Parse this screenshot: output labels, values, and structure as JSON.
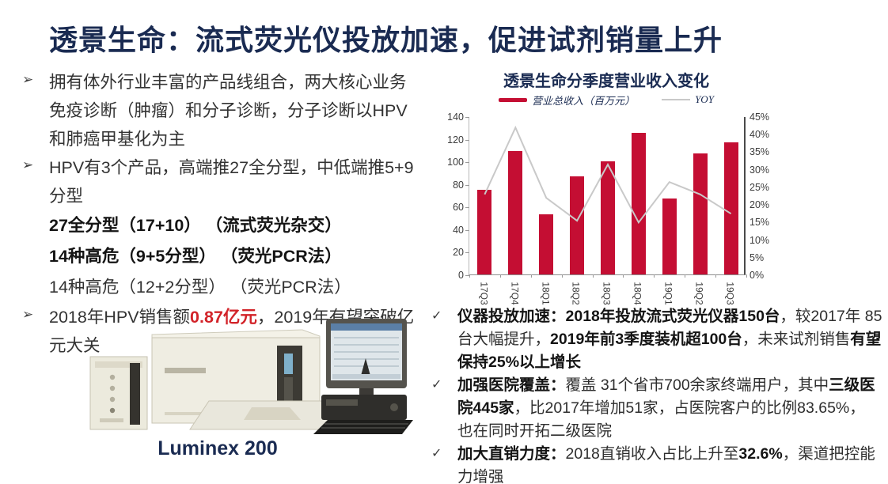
{
  "slide_title": "透景生命：流式荧光仪投放加速，促进试剂销量上升",
  "left_panel": {
    "bullets": [
      {
        "marker": "➢",
        "sub": false,
        "segments": [
          {
            "text": "拥有体外行业丰富的产品线组合，两大核心业务免疫诊断（肿瘤）和分子诊断，分子诊断以HPV和肺癌甲基化为主"
          }
        ]
      },
      {
        "marker": "➢",
        "sub": false,
        "segments": [
          {
            "text": "HPV有3个产品，高端推27全分型，中低端推5+9分型"
          }
        ]
      },
      {
        "marker": "",
        "sub": true,
        "segments": [
          {
            "text": "27全分型（17+10） （流式荧光杂交）",
            "bold": true
          }
        ]
      },
      {
        "marker": "",
        "sub": true,
        "segments": [
          {
            "text": "14种高危（9+5分型） （荧光PCR法）",
            "bold": true
          }
        ]
      },
      {
        "marker": "",
        "sub": true,
        "segments": [
          {
            "text": "14种高危（12+2分型） （荧光PCR法）"
          }
        ]
      },
      {
        "marker": "➢",
        "sub": false,
        "segments": [
          {
            "text": "2018年HPV销售额"
          },
          {
            "text": "0.87亿元",
            "bold": true,
            "color": "#d22329"
          },
          {
            "text": "，2019年有望突破亿元大关"
          }
        ]
      }
    ],
    "machine_caption": "Luminex 200"
  },
  "right_panel": {
    "bullets": [
      {
        "marker": "✓",
        "segments": [
          {
            "text": "仪器投放加速：2018年投放流式荧光仪器150台",
            "bold": true
          },
          {
            "text": "，较2017年 85台大幅提升，"
          },
          {
            "text": "2019年前3季度装机超100台",
            "bold": true
          },
          {
            "text": "，未来试剂销售"
          },
          {
            "text": "有望保持25%以上增长",
            "bold": true
          }
        ]
      },
      {
        "marker": "✓",
        "segments": [
          {
            "text": "加强医院覆盖：",
            "bold": true
          },
          {
            "text": "覆盖 31个省市700余家终端用户，其中"
          },
          {
            "text": "三级医院445家",
            "bold": true
          },
          {
            "text": "，比2017年增加51家，占医院客户的比例83.65%， 也在同时开拓二级医院"
          }
        ]
      },
      {
        "marker": "✓",
        "segments": [
          {
            "text": "加大直销力度：",
            "bold": true
          },
          {
            "text": "2018直销收入占比上升至"
          },
          {
            "text": "32.6%",
            "bold": true
          },
          {
            "text": "，渠道把控能力增强"
          }
        ]
      }
    ]
  },
  "chart_data": {
    "type": "bar",
    "title": "透景生命分季度营业收入变化",
    "categories": [
      "17Q3",
      "17Q4",
      "18Q1",
      "18Q2",
      "18Q3",
      "18Q4",
      "19Q1",
      "19Q2",
      "19Q3"
    ],
    "series": [
      {
        "name": "营业总收入（百万元）",
        "type": "bar",
        "axis": "left",
        "color": "#c40e33",
        "values": [
          75,
          109,
          53,
          87,
          100,
          125,
          67,
          107,
          117
        ]
      },
      {
        "name": "YOY",
        "type": "line",
        "axis": "right",
        "color": "#c9c9c9",
        "values": [
          23,
          42,
          22,
          15.5,
          31.5,
          15,
          26.5,
          23,
          17.5
        ]
      }
    ],
    "left_axis": {
      "min": 0,
      "max": 140,
      "tick_labels": [
        "140",
        "120",
        "100",
        "80",
        "60",
        "40",
        "20",
        "0"
      ]
    },
    "right_axis": {
      "min": 0,
      "max": 45,
      "tick_labels": [
        "45%",
        "40%",
        "35%",
        "30%",
        "25%",
        "20%",
        "15%",
        "10%",
        "5%",
        "0%"
      ]
    },
    "legend_position": "top",
    "grid": false,
    "xlabel": "",
    "ylabel": ""
  },
  "colors": {
    "accent_navy": "#1a2b52",
    "bar_red": "#c40e33",
    "line_gray": "#c9c9c9",
    "highlight_red": "#d22329"
  }
}
